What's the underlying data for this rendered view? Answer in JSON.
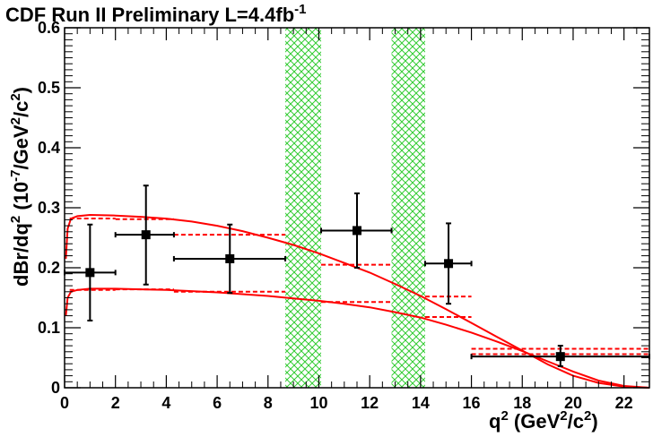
{
  "chart_data": {
    "type": "scatter",
    "title": "CDF Run II Preliminary L=4.4fb",
    "title_superscript": "-1",
    "xlabel": "q",
    "xlabel_sup": "2",
    "xlabel_unit_open": " (GeV",
    "xlabel_unit_sup": "2",
    "xlabel_unit_close": "/c",
    "xlabel_unit_sup2": "2",
    "xlabel_unit_end": ")",
    "ylabel_parts": [
      "dBr/dq",
      "2",
      " (10",
      "-7",
      "/GeV",
      "2",
      "/c",
      "2",
      ")"
    ],
    "xlim": [
      0,
      23
    ],
    "ylim": [
      0,
      0.6
    ],
    "x_ticks": [
      0,
      2,
      4,
      6,
      8,
      10,
      12,
      14,
      16,
      18,
      20,
      22
    ],
    "x_tick_labels": [
      "0",
      "2",
      "4",
      "6",
      "8",
      "10",
      "12",
      "14",
      "16",
      "18",
      "20",
      "22"
    ],
    "y_ticks": [
      0,
      0.1,
      0.2,
      0.3,
      0.4,
      0.5,
      0.6
    ],
    "y_tick_labels": [
      "0",
      "0.1",
      "0.2",
      "0.3",
      "0.4",
      "0.5",
      "0.6"
    ],
    "grid": false,
    "legend": "none",
    "colors": {
      "data": "#000000",
      "theory": "#ff0000",
      "veto": "#33cc33"
    },
    "data_points": [
      {
        "x": 1.0,
        "xlo": 0.0,
        "xhi": 2.0,
        "y": 0.192,
        "ylo": 0.112,
        "yhi": 0.272
      },
      {
        "x": 3.2,
        "xlo": 2.0,
        "xhi": 4.3,
        "y": 0.255,
        "ylo": 0.172,
        "yhi": 0.337
      },
      {
        "x": 6.5,
        "xlo": 4.3,
        "xhi": 8.68,
        "y": 0.215,
        "ylo": 0.158,
        "yhi": 0.272
      },
      {
        "x": 11.5,
        "xlo": 10.09,
        "xhi": 12.86,
        "y": 0.262,
        "ylo": 0.2,
        "yhi": 0.324
      },
      {
        "x": 15.1,
        "xlo": 14.18,
        "xhi": 16.0,
        "y": 0.207,
        "ylo": 0.14,
        "yhi": 0.274
      },
      {
        "x": 19.5,
        "xlo": 16.0,
        "xhi": 23.0,
        "y": 0.052,
        "ylo": 0.036,
        "yhi": 0.07
      }
    ],
    "theory_upper_curve": [
      [
        0.05,
        0.215
      ],
      [
        0.12,
        0.265
      ],
      [
        0.25,
        0.282
      ],
      [
        0.5,
        0.286
      ],
      [
        1.0,
        0.288
      ],
      [
        2,
        0.287
      ],
      [
        3,
        0.285
      ],
      [
        4,
        0.282
      ],
      [
        5,
        0.277
      ],
      [
        6,
        0.27
      ],
      [
        7,
        0.261
      ],
      [
        8,
        0.25
      ],
      [
        9,
        0.238
      ],
      [
        10,
        0.224
      ],
      [
        11,
        0.208
      ],
      [
        12,
        0.192
      ],
      [
        13,
        0.173
      ],
      [
        14,
        0.153
      ],
      [
        15,
        0.131
      ],
      [
        16,
        0.108
      ],
      [
        17,
        0.085
      ],
      [
        18,
        0.062
      ],
      [
        19,
        0.039
      ],
      [
        20,
        0.02
      ],
      [
        21,
        0.008
      ],
      [
        22,
        0.002
      ],
      [
        23,
        0.0
      ]
    ],
    "theory_lower_curve": [
      [
        0.05,
        0.12
      ],
      [
        0.12,
        0.15
      ],
      [
        0.25,
        0.16
      ],
      [
        0.5,
        0.163
      ],
      [
        1.0,
        0.165
      ],
      [
        2,
        0.165
      ],
      [
        3,
        0.164
      ],
      [
        4,
        0.163
      ],
      [
        5,
        0.161
      ],
      [
        6,
        0.159
      ],
      [
        7,
        0.156
      ],
      [
        8,
        0.153
      ],
      [
        9,
        0.149
      ],
      [
        10,
        0.145
      ],
      [
        11,
        0.14
      ],
      [
        12,
        0.134
      ],
      [
        13,
        0.126
      ],
      [
        14,
        0.117
      ],
      [
        15,
        0.105
      ],
      [
        16,
        0.092
      ],
      [
        17,
        0.077
      ],
      [
        18,
        0.061
      ],
      [
        19,
        0.044
      ],
      [
        20,
        0.027
      ],
      [
        21,
        0.012
      ],
      [
        22,
        0.003
      ],
      [
        23,
        0.0
      ]
    ],
    "theory_binned_upper": [
      {
        "xlo": 0.2,
        "xhi": 2.0,
        "y": 0.282
      },
      {
        "xlo": 2.0,
        "xhi": 4.3,
        "y": 0.281
      },
      {
        "xlo": 4.3,
        "xhi": 8.68,
        "y": 0.255
      },
      {
        "xlo": 10.09,
        "xhi": 12.86,
        "y": 0.205
      },
      {
        "xlo": 14.18,
        "xhi": 16.0,
        "y": 0.152
      },
      {
        "xlo": 16.0,
        "xhi": 23.0,
        "y": 0.065
      }
    ],
    "theory_binned_lower": [
      {
        "xlo": 0.2,
        "xhi": 2.0,
        "y": 0.163
      },
      {
        "xlo": 2.0,
        "xhi": 4.3,
        "y": 0.164
      },
      {
        "xlo": 4.3,
        "xhi": 8.68,
        "y": 0.16
      },
      {
        "xlo": 10.09,
        "xhi": 12.86,
        "y": 0.143
      },
      {
        "xlo": 14.18,
        "xhi": 16.0,
        "y": 0.118
      },
      {
        "xlo": 16.0,
        "xhi": 23.0,
        "y": 0.056
      }
    ],
    "vetoed_regions": [
      {
        "xlo": 8.68,
        "xhi": 10.09
      },
      {
        "xlo": 12.86,
        "xhi": 14.18
      }
    ]
  }
}
